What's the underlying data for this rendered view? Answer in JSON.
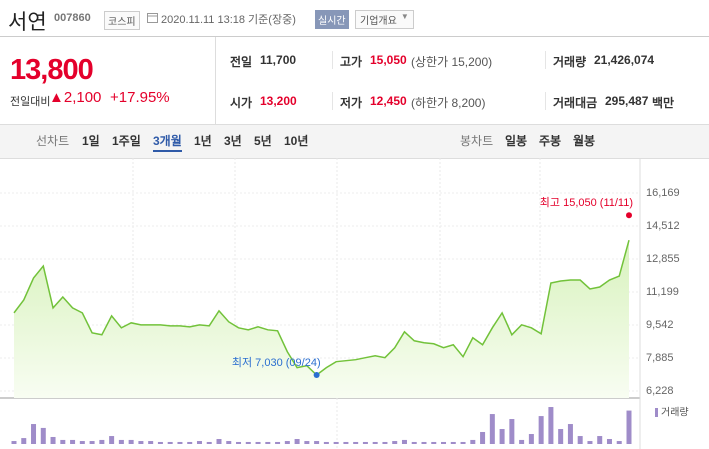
{
  "header": {
    "name": "서연",
    "code": "007860",
    "market": "코스피",
    "timestamp": "2020.11.11 13:18 기준(장중)",
    "realtime": "실시간",
    "company_info": "기업개요"
  },
  "quote": {
    "price": "13,800",
    "change_label": "전일대비",
    "change": "▲2,100",
    "change_rate": "+17.95%",
    "color": "#e4002b"
  },
  "stats": [
    [
      {
        "label": "전일",
        "value": "11,700"
      },
      {
        "label": "고가",
        "value": "15,050",
        "note": "(상한가 15,200)",
        "color": "#e4002b"
      },
      {
        "label": "거래량",
        "value": "21,426,074"
      }
    ],
    [
      {
        "label": "시가",
        "value": "13,200",
        "color": "#e4002b"
      },
      {
        "label": "저가",
        "value": "12,450",
        "note": "(하한가 8,200)",
        "color": "#e4002b"
      },
      {
        "label": "거래대금",
        "value": "295,487",
        "unit": "백만"
      }
    ]
  ],
  "tabs": {
    "line_label": "선차트",
    "line_periods": [
      "1일",
      "1주일",
      "3개월",
      "1년",
      "3년",
      "5년",
      "10년"
    ],
    "selected": 2,
    "candle_label": "봉차트",
    "candle_periods": [
      "일봉",
      "주봉",
      "월봉"
    ]
  },
  "chart_data": {
    "type": "area",
    "categories": [
      null,
      null,
      null,
      null,
      null,
      null,
      null,
      null,
      null,
      null,
      null,
      null,
      null,
      null,
      null,
      null,
      null,
      null,
      null,
      null,
      null,
      null,
      null,
      null,
      null,
      null,
      null,
      null,
      null,
      null,
      null,
      null,
      null,
      null,
      null,
      null,
      null,
      null,
      null,
      null,
      null,
      null,
      null,
      null,
      null,
      null,
      null,
      null,
      null,
      null,
      null,
      null,
      null,
      null,
      null,
      null,
      null,
      null,
      null,
      null,
      null,
      null,
      null,
      null
    ],
    "series": [
      {
        "color": "#72c23a",
        "values": [
          10150,
          10800,
          11900,
          12500,
          10400,
          10950,
          10400,
          10150,
          9150,
          9050,
          10000,
          9400,
          9650,
          9550,
          9550,
          9550,
          9500,
          9500,
          9450,
          9550,
          9500,
          10250,
          9700,
          9400,
          9300,
          9450,
          9300,
          9250,
          8200,
          7400,
          7500,
          7030,
          7400,
          7700,
          7750,
          7800,
          7900,
          8000,
          7900,
          8400,
          9200,
          8750,
          8650,
          8600,
          8400,
          8550,
          7950,
          8900,
          8550,
          9400,
          10150,
          9050,
          9550,
          9400,
          9100,
          11650,
          11750,
          11800,
          11800,
          11350,
          11450,
          11800,
          12000,
          13800
        ]
      },
      {
        "name": "거래량",
        "color": "#9f8cc9",
        "axis": "y2",
        "values": [
          1900000,
          3800000,
          12800000,
          10300000,
          4500000,
          2600000,
          2600000,
          1900000,
          1900000,
          2600000,
          5100000,
          2600000,
          2600000,
          1900000,
          1900000,
          1300000,
          1300000,
          1300000,
          1300000,
          1900000,
          1300000,
          3200000,
          1900000,
          1300000,
          1300000,
          1300000,
          1300000,
          1300000,
          1900000,
          3200000,
          1900000,
          1900000,
          1300000,
          1300000,
          1300000,
          1300000,
          1300000,
          1300000,
          1300000,
          1900000,
          2600000,
          1300000,
          1300000,
          1300000,
          1300000,
          1300000,
          1300000,
          2600000,
          7700000,
          19200000,
          9600000,
          16000000,
          2600000,
          6400000,
          17900000,
          23700000,
          9600000,
          12800000,
          5100000,
          1900000,
          5100000,
          3200000,
          1900000,
          21426074
        ]
      }
    ],
    "ylim": [
      6228,
      16169
    ],
    "yticks": [
      {
        "value": 16169,
        "label": "16,169"
      },
      {
        "value": 14512,
        "label": "14,512"
      },
      {
        "value": 12855,
        "label": "12,855"
      },
      {
        "value": 11199,
        "label": "11,199"
      },
      {
        "value": 9542,
        "label": "9,542"
      },
      {
        "value": 7885,
        "label": "7,885"
      },
      {
        "value": 6228,
        "label": "6,228"
      }
    ],
    "y2lim": [
      0,
      25000000
    ],
    "grid": true,
    "annotations": [
      {
        "text": "최고 15,050 (11/11)",
        "value": 15050,
        "color": "#e4002b"
      },
      {
        "text": "최저 7,030 (09/24)",
        "value": 7030,
        "color": "#2b6fd0"
      }
    ]
  }
}
